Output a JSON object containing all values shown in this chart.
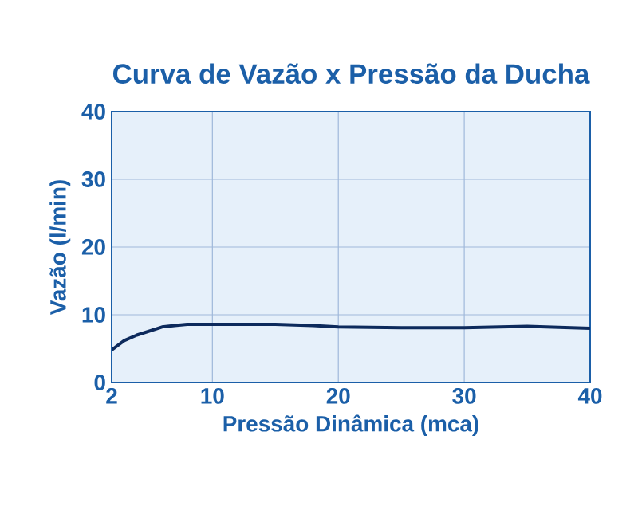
{
  "chart_data": {
    "type": "line",
    "title": "Curva de Vazão x Pressão da Ducha",
    "xlabel": "Pressão Dinâmica (mca)",
    "ylabel": "Vazão (l/min)",
    "x": [
      2,
      3,
      4,
      5,
      6,
      7,
      8,
      10,
      12,
      15,
      18,
      20,
      25,
      30,
      35,
      40
    ],
    "series": [
      {
        "color": "#0d2a5c",
        "values": [
          4.8,
          6.2,
          7.0,
          7.6,
          8.2,
          8.4,
          8.6,
          8.6,
          8.6,
          8.6,
          8.4,
          8.2,
          8.1,
          8.1,
          8.3,
          8.0
        ]
      }
    ],
    "xlim": [
      2,
      40
    ],
    "xticks": [
      2,
      10,
      20,
      30,
      40
    ],
    "ylim": [
      0,
      40
    ],
    "yticks": [
      0,
      10,
      20,
      30,
      40
    ],
    "grid": true,
    "marker": "none",
    "line_style": "solid"
  }
}
